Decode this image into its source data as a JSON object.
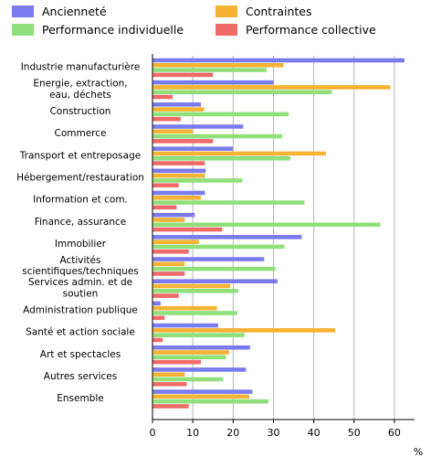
{
  "chart_data": {
    "type": "bar",
    "orientation": "horizontal",
    "categories": [
      "Industrie manufacturière",
      "Energie, extraction, eau, déchets",
      "Construction",
      "Commerce",
      "Transport et entreposage",
      "Hébergement/restauration",
      "Information et com.",
      "Finance, assurance",
      "Immobilier",
      "Activités scientifiques/techniques",
      "Services admin. et de soutien",
      "Administration publique",
      "Santé et action sociale",
      "Art et spectacles",
      "Autres services",
      "Ensemble"
    ],
    "category_lines": [
      [
        "Industrie manufacturière"
      ],
      [
        "Energie, extraction,",
        "eau, déchets"
      ],
      [
        "Construction"
      ],
      [
        "Commerce"
      ],
      [
        "Transport et entreposage"
      ],
      [
        "Hébergement/restauration"
      ],
      [
        "Information et com."
      ],
      [
        "Finance, assurance"
      ],
      [
        "Immobilier"
      ],
      [
        "Activités",
        "scientifiques/techniques"
      ],
      [
        "Services admin. et de",
        "soutien"
      ],
      [
        "Administration publique"
      ],
      [
        "Santé et action sociale"
      ],
      [
        "Art et spectacles"
      ],
      [
        "Autres services"
      ],
      [
        "Ensemble"
      ]
    ],
    "series": [
      {
        "name": "Ancienneté",
        "color": "#7b7bf0",
        "values": [
          62.5,
          30.0,
          12.0,
          22.5,
          20.0,
          13.2,
          13.0,
          10.5,
          37.0,
          27.7,
          31.0,
          2.0,
          16.3,
          24.2,
          23.2,
          24.8
        ]
      },
      {
        "name": "Contraintes",
        "color": "#f5b233",
        "values": [
          32.5,
          59.0,
          12.8,
          10.0,
          43.0,
          13.0,
          12.0,
          8.0,
          11.5,
          8.0,
          19.3,
          16.0,
          45.3,
          19.0,
          8.0,
          24.0
        ]
      },
      {
        "name": "Performance individuelle",
        "color": "#8fe07a",
        "values": [
          28.3,
          44.5,
          33.8,
          32.2,
          34.2,
          22.3,
          37.7,
          56.5,
          32.7,
          30.5,
          21.2,
          21.0,
          22.8,
          18.2,
          17.5,
          28.8
        ]
      },
      {
        "name": "Performance collective",
        "color": "#f06a6a",
        "values": [
          15.0,
          5.0,
          7.0,
          15.0,
          13.0,
          6.5,
          6.0,
          17.3,
          9.0,
          8.0,
          6.5,
          3.0,
          2.5,
          12.0,
          8.5,
          9.0
        ]
      }
    ],
    "x_ticks": [
      0,
      10,
      20,
      30,
      40,
      50,
      60
    ],
    "xlim": [
      0,
      65
    ],
    "xlabel": "%",
    "grid": true,
    "legend_position": "top"
  }
}
